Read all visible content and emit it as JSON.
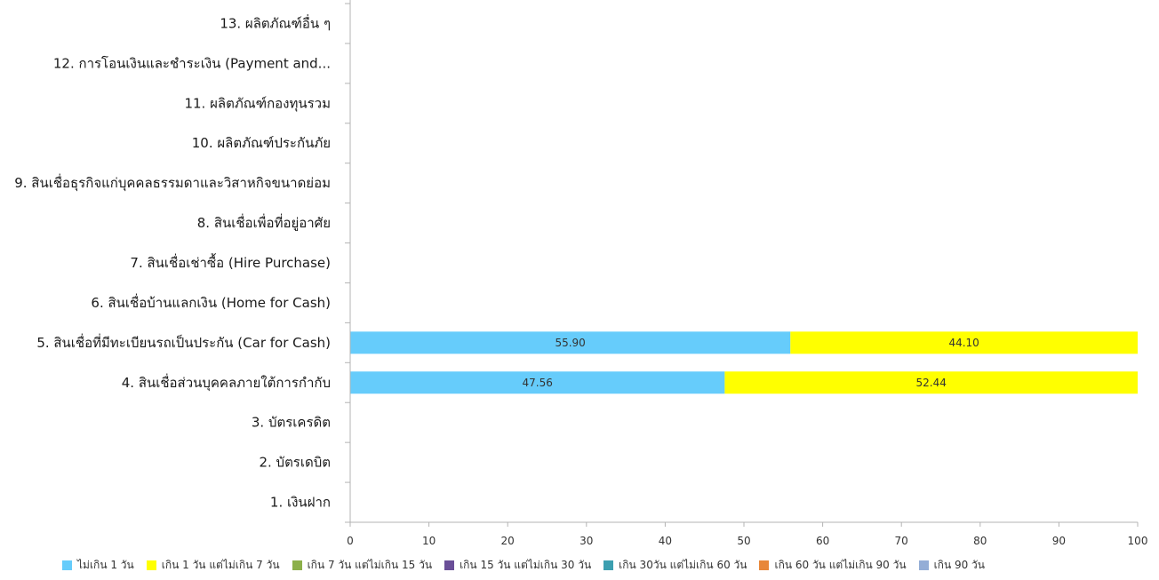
{
  "chart_data": {
    "type": "bar",
    "orientation": "horizontal",
    "stacked": true,
    "categories": [
      "13. ผลิตภัณฑ์อื่น ๆ",
      "12. การโอนเงินและชำระเงิน (Payment and...",
      "11. ผลิตภัณฑ์กองทุนรวม",
      "10. ผลิตภัณฑ์ประกันภัย",
      "9. สินเชื่อธุรกิจแก่บุคคลธรรมดาและวิสาหกิจขนาดย่อม",
      "8. สินเชื่อเพื่อที่อยู่อาศัย",
      "7. สินเชื่อเช่าซื้อ (Hire Purchase)",
      "6. สินเชื่อบ้านแลกเงิน (Home for Cash)",
      "5. สินเชื่อที่มีทะเบียนรถเป็นประกัน (Car for Cash)",
      "4. สินเชื่อส่วนบุคคลภายใต้การกำกับ",
      "3. บัตรเครดิต",
      "2. บัตรเดบิต",
      "1. เงินฝาก"
    ],
    "series": [
      {
        "name": "ไม่เกิน 1 วัน",
        "color": "#66ccfb",
        "values": [
          0,
          0,
          0,
          0,
          0,
          0,
          0,
          0,
          55.9,
          47.56,
          0,
          0,
          0
        ],
        "labels": [
          "",
          "",
          "",
          "",
          "",
          "",
          "",
          "",
          "55.90",
          "47.56",
          "",
          "",
          ""
        ]
      },
      {
        "name": "เกิน 1 วัน แต่ไม่เกิน 7 วัน",
        "color": "#ffff00",
        "values": [
          0,
          0,
          0,
          0,
          0,
          0,
          0,
          0,
          44.1,
          52.44,
          0,
          0,
          0
        ],
        "labels": [
          "",
          "",
          "",
          "",
          "",
          "",
          "",
          "",
          "44.10",
          "52.44",
          "",
          "",
          ""
        ]
      },
      {
        "name": "เกิน 7 วัน แต่ไม่เกิน 15 วัน",
        "color": "#8cb04a",
        "values": [
          0,
          0,
          0,
          0,
          0,
          0,
          0,
          0,
          0,
          0,
          0,
          0,
          0
        ],
        "labels": []
      },
      {
        "name": "เกิน 15 วัน แต่ไม่เกิน 30 วัน",
        "color": "#6a4f98",
        "values": [
          0,
          0,
          0,
          0,
          0,
          0,
          0,
          0,
          0,
          0,
          0,
          0,
          0
        ],
        "labels": []
      },
      {
        "name": "เกิน 30วัน แต่ไม่เกิน 60 วัน",
        "color": "#3c9fb0",
        "values": [
          0,
          0,
          0,
          0,
          0,
          0,
          0,
          0,
          0,
          0,
          0,
          0,
          0
        ],
        "labels": []
      },
      {
        "name": "เกิน 60 วัน แต่ไม่เกิน 90 วัน",
        "color": "#e8873a",
        "values": [
          0,
          0,
          0,
          0,
          0,
          0,
          0,
          0,
          0,
          0,
          0,
          0,
          0
        ],
        "labels": []
      },
      {
        "name": "เกิน 90 วัน",
        "color": "#94add6",
        "values": [
          0,
          0,
          0,
          0,
          0,
          0,
          0,
          0,
          0,
          0,
          0,
          0,
          0
        ],
        "labels": []
      }
    ],
    "xlim": [
      0,
      100
    ],
    "xticks": [
      "0",
      "10",
      "20",
      "30",
      "40",
      "50",
      "60",
      "70",
      "80",
      "90",
      "100"
    ],
    "title": "",
    "xlabel": "",
    "ylabel": "",
    "grid": false,
    "legend_position": "bottom"
  }
}
